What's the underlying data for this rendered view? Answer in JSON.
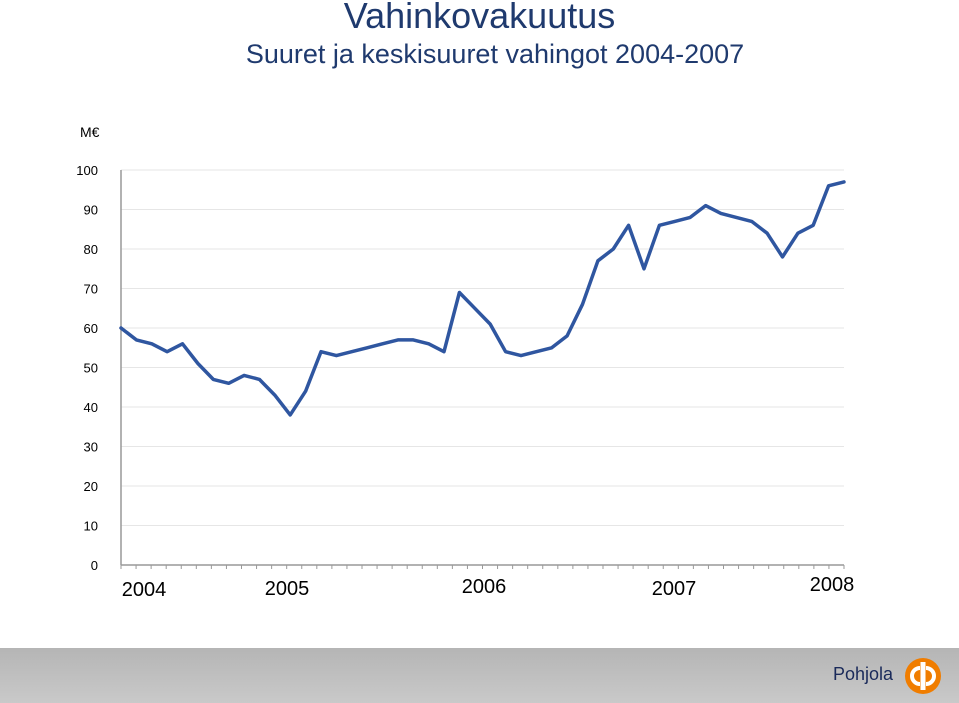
{
  "title": "Vahinkovakuutus",
  "subtitle": "Suuret ja keskisuuret vahingot 2004-2007",
  "brand": "Pohjola",
  "colors": {
    "line": "#2f56a0",
    "grid": "#e6e6e6",
    "axis": "#999999",
    "title": "#1f3a6e",
    "footer": "#bdbdbd",
    "logo": "#f07d00"
  },
  "chart_data": {
    "type": "line",
    "ylabel": "M€",
    "ylim": [
      0,
      100
    ],
    "yticks": [
      0,
      10,
      20,
      30,
      40,
      50,
      60,
      70,
      80,
      90,
      100
    ],
    "year_labels": [
      "2004",
      "2005",
      "2006",
      "2007",
      "2008"
    ],
    "grid": true,
    "series": [
      {
        "values": [
          60,
          57,
          56,
          54,
          56,
          51,
          47,
          46,
          48,
          47,
          43,
          38,
          44,
          54,
          53,
          54,
          55,
          56,
          57,
          57,
          56,
          54,
          69,
          65,
          61,
          54,
          53,
          54,
          55,
          58,
          66,
          77,
          80,
          86,
          75,
          86,
          87,
          88,
          91,
          89,
          88,
          87,
          84,
          78,
          84,
          86,
          96,
          97
        ]
      }
    ]
  }
}
